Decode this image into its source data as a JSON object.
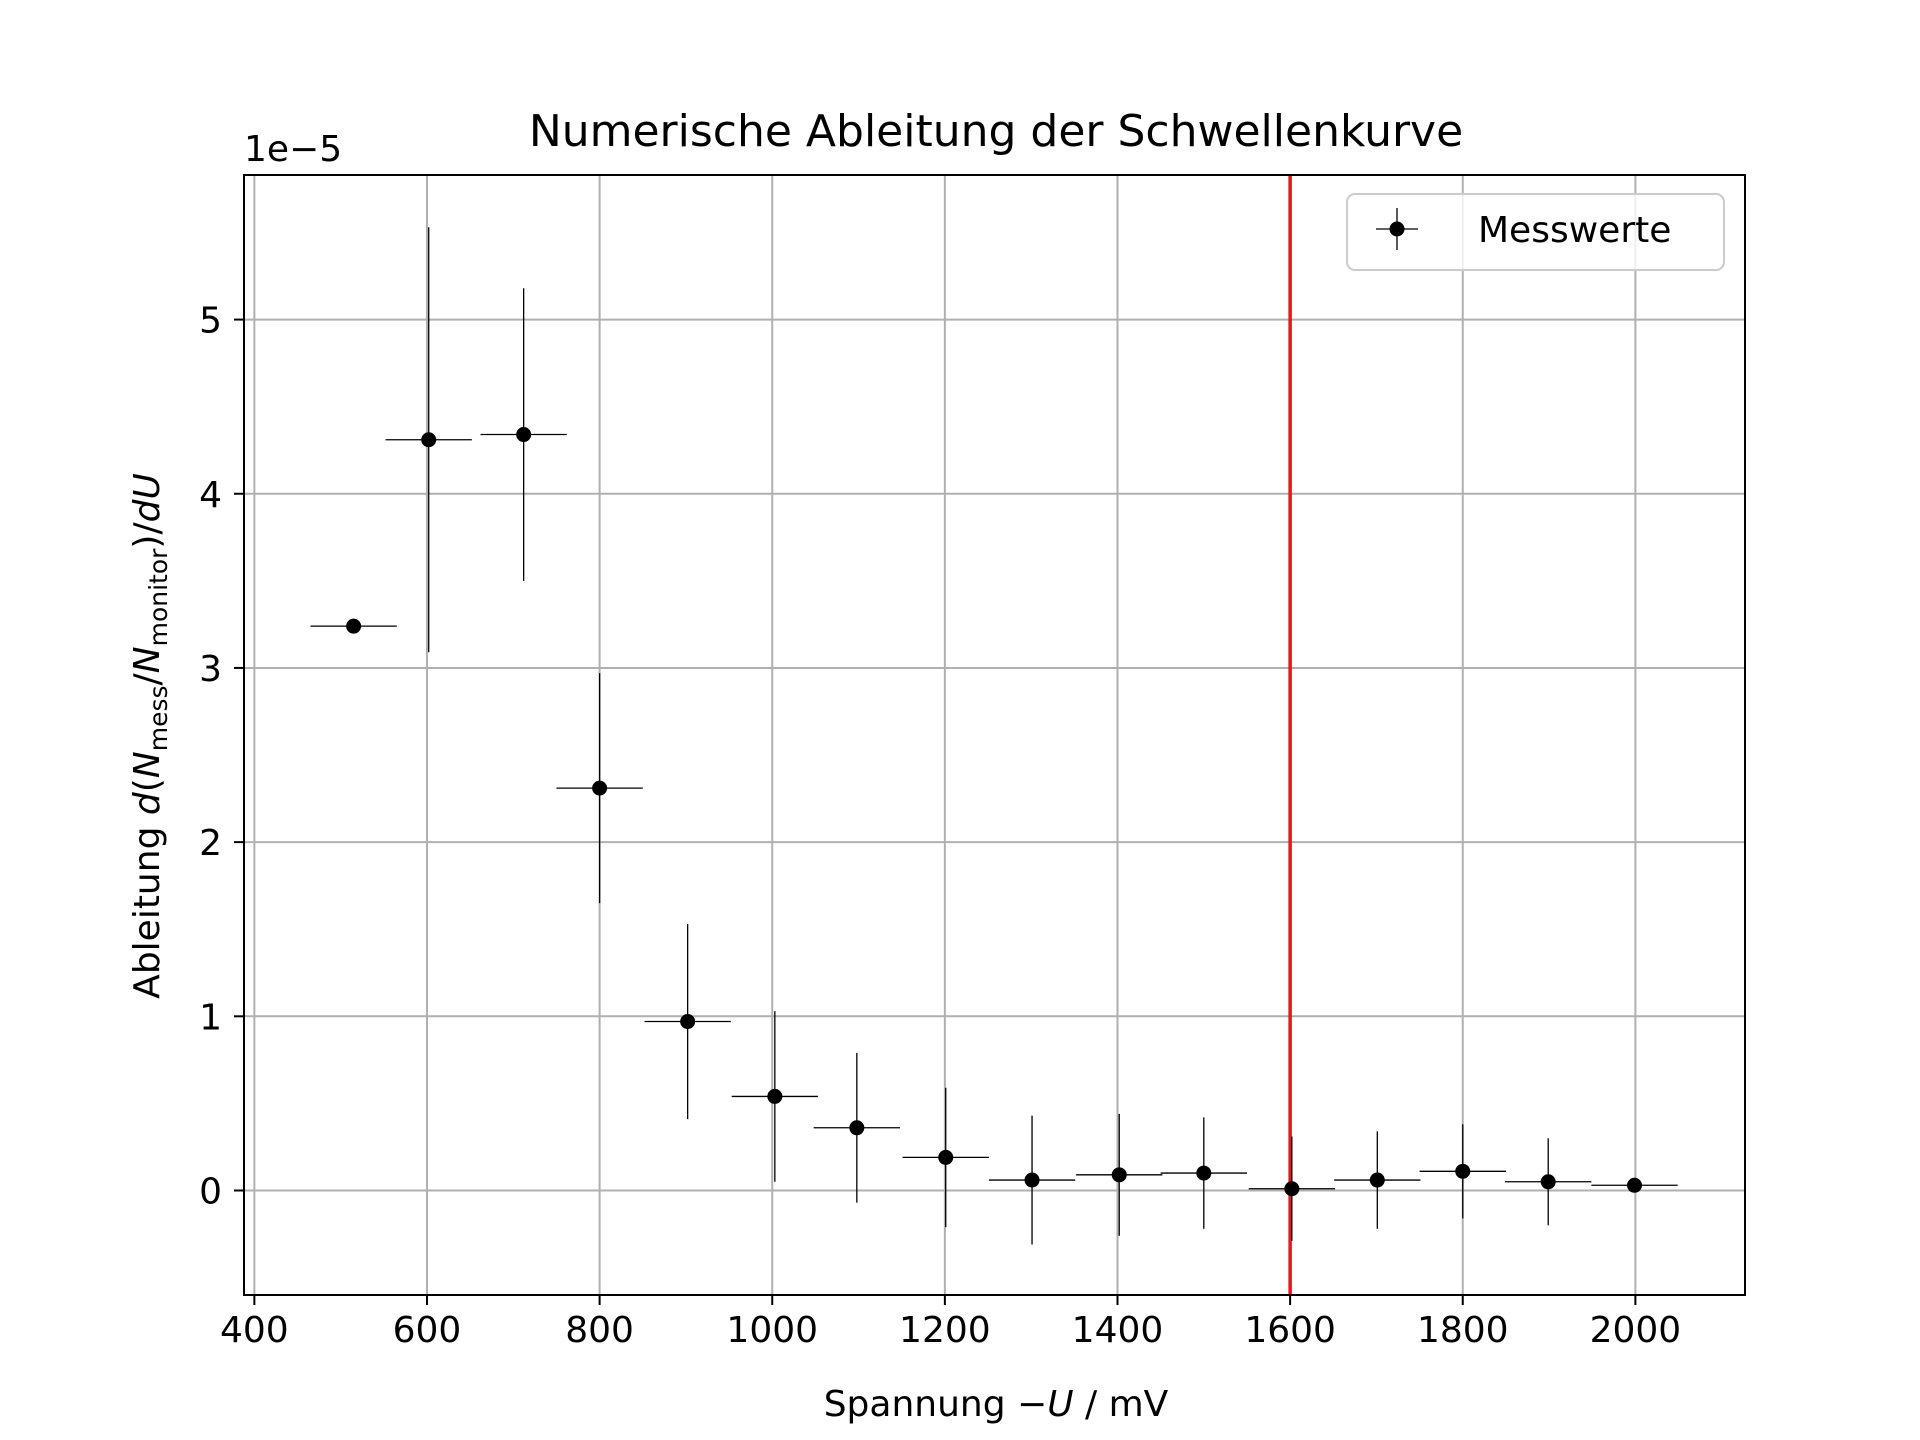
{
  "chart_data": {
    "type": "scatter",
    "title": "Numerische Ableitung der Schwellenkurve",
    "xlabel": "Spannung −U / mV",
    "ylabel": "Ableitung d(N_mess/N_monitor)/dU",
    "ylabel_parts": {
      "prefix": "Ableitung ",
      "d": "d",
      "paren_open": "(",
      "N": "N",
      "sub_mess": "mess",
      "slash": "/",
      "sub_monitor": "monitor",
      "close": ")/",
      "dU": "dU"
    },
    "xlabel_parts": {
      "prefix": "Spannung −",
      "var": "U",
      "suffix": " / mV"
    },
    "offset_text": "1e−5",
    "xlim": [
      388,
      2127
    ],
    "ylim": [
      -0.6,
      5.83
    ],
    "x_ticks": [
      400,
      600,
      800,
      1000,
      1200,
      1400,
      1600,
      1800,
      2000
    ],
    "x_tick_labels": [
      "400",
      "600",
      "800",
      "1000",
      "1200",
      "1400",
      "1600",
      "1800",
      "2000"
    ],
    "y_ticks": [
      0,
      1,
      2,
      3,
      4,
      5
    ],
    "y_tick_labels": [
      "0",
      "1",
      "2",
      "3",
      "4",
      "5"
    ],
    "grid": true,
    "legend_position": "upper right",
    "series": [
      {
        "name": "Messwerte",
        "color": "#000000",
        "marker": "circle",
        "points": [
          {
            "x": 515,
            "y": 3.24,
            "xerr": 50,
            "yerr": 0.0
          },
          {
            "x": 602,
            "y": 4.31,
            "xerr": 50,
            "yerr": 1.22
          },
          {
            "x": 712,
            "y": 4.34,
            "xerr": 50,
            "yerr": 0.84
          },
          {
            "x": 800,
            "y": 2.31,
            "xerr": 50,
            "yerr": 0.66
          },
          {
            "x": 902,
            "y": 0.97,
            "xerr": 50,
            "yerr": 0.56
          },
          {
            "x": 1003,
            "y": 0.54,
            "xerr": 50,
            "yerr": 0.49
          },
          {
            "x": 1098,
            "y": 0.36,
            "xerr": 50,
            "yerr": 0.43
          },
          {
            "x": 1201,
            "y": 0.19,
            "xerr": 50,
            "yerr": 0.4
          },
          {
            "x": 1301,
            "y": 0.06,
            "xerr": 50,
            "yerr": 0.37
          },
          {
            "x": 1402,
            "y": 0.09,
            "xerr": 50,
            "yerr": 0.35
          },
          {
            "x": 1500,
            "y": 0.1,
            "xerr": 50,
            "yerr": 0.32
          },
          {
            "x": 1602,
            "y": 0.01,
            "xerr": 50,
            "yerr": 0.3
          },
          {
            "x": 1701,
            "y": 0.06,
            "xerr": 50,
            "yerr": 0.28
          },
          {
            "x": 1800,
            "y": 0.11,
            "xerr": 50,
            "yerr": 0.27
          },
          {
            "x": 1899,
            "y": 0.05,
            "xerr": 50,
            "yerr": 0.25
          },
          {
            "x": 1999,
            "y": 0.03,
            "xerr": 50,
            "yerr": 0.0
          }
        ]
      }
    ],
    "vline": {
      "x": 1600,
      "color": "#e31a1c"
    }
  }
}
